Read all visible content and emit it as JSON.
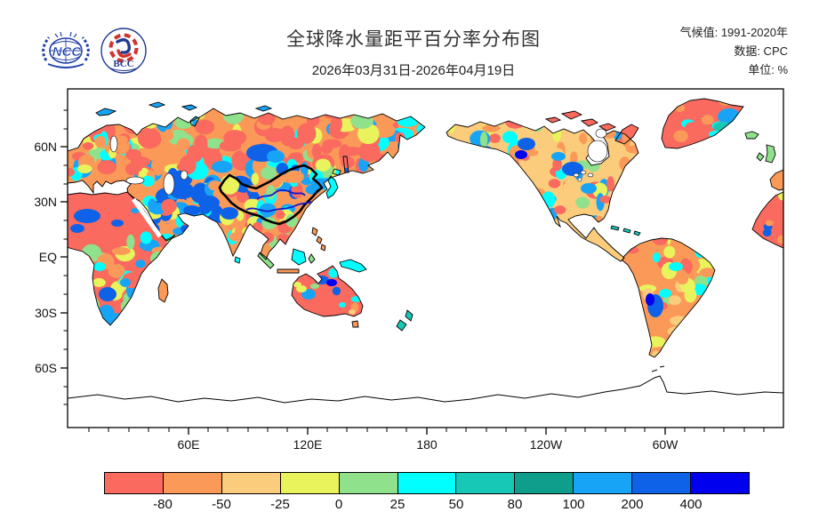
{
  "header": {
    "logos": [
      {
        "name": "NCC",
        "text": "NCC"
      },
      {
        "name": "BCC",
        "text": "BCC"
      }
    ],
    "title": "全球降水量距平百分率分布图",
    "subtitle": "2026年03月31日-2026年04月19日",
    "meta": [
      {
        "label": "气候值:",
        "value": " 1991-2020年"
      },
      {
        "label": "数据:",
        "value": " CPC"
      },
      {
        "label": "单位:",
        "value": " %"
      }
    ]
  },
  "map": {
    "lat_tick_labels": [
      "60N",
      "30N",
      "EQ",
      "30S",
      "60S"
    ],
    "lon_tick_labels": [
      "60E",
      "120E",
      "180",
      "120W",
      "60W"
    ]
  },
  "colorbar": {
    "tick_labels": [
      "-80",
      "-50",
      "-25",
      "0",
      "25",
      "50",
      "80",
      "100",
      "200",
      "400"
    ],
    "colors": [
      "#FA6A5F",
      "#FB9A58",
      "#FACC7C",
      "#E9F35B",
      "#90E18C",
      "#00FFFF",
      "#18C8B6",
      "#0F9E8C",
      "#18A4F6",
      "#0E62E8",
      "#0000EE"
    ]
  }
}
